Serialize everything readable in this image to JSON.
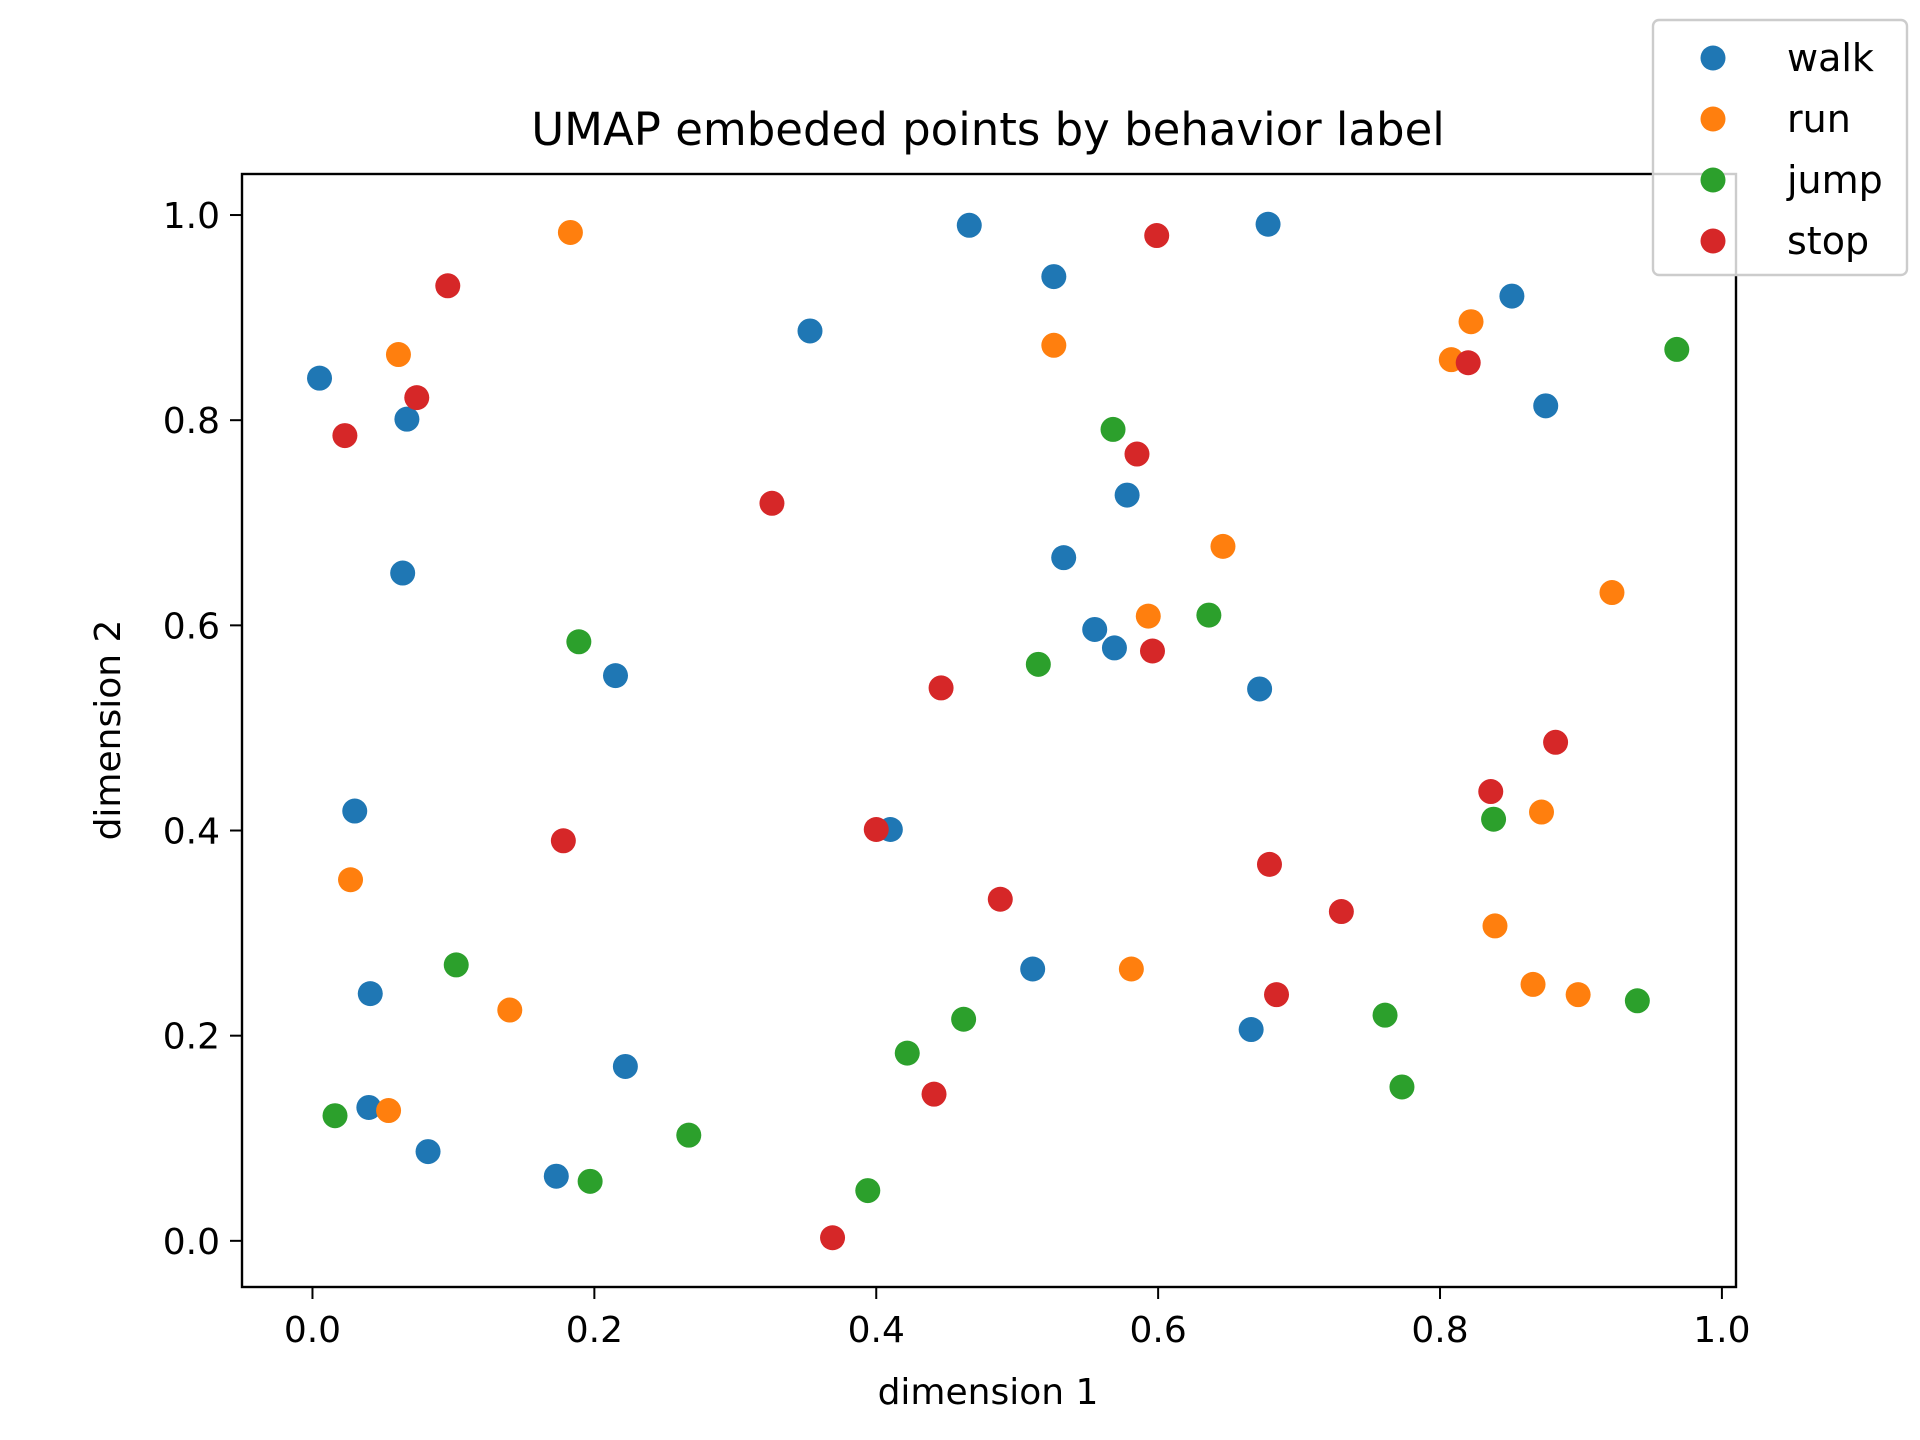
{
  "chart_data": {
    "type": "scatter",
    "title": "UMAP embeded points by behavior label",
    "xlabel": "dimension 1",
    "ylabel": "dimension 2",
    "xlim": [
      -0.05,
      1.01
    ],
    "ylim": [
      -0.045,
      1.04
    ],
    "xticks": [
      0.0,
      0.2,
      0.4,
      0.6,
      0.8,
      1.0
    ],
    "xtick_labels": [
      "0.0",
      "0.2",
      "0.4",
      "0.6",
      "0.8",
      "1.0"
    ],
    "yticks": [
      0.0,
      0.2,
      0.4,
      0.6,
      0.8,
      1.0
    ],
    "ytick_labels": [
      "0.0",
      "0.2",
      "0.4",
      "0.6",
      "0.8",
      "1.0"
    ],
    "grid": false,
    "legend": "top-right",
    "series": [
      {
        "name": "walk",
        "color": "#1f77b4",
        "points": [
          [
            0.005,
            0.841
          ],
          [
            0.067,
            0.801
          ],
          [
            0.064,
            0.651
          ],
          [
            0.03,
            0.419
          ],
          [
            0.041,
            0.241
          ],
          [
            0.04,
            0.13
          ],
          [
            0.082,
            0.087
          ],
          [
            0.173,
            0.063
          ],
          [
            0.215,
            0.551
          ],
          [
            0.222,
            0.17
          ],
          [
            0.353,
            0.887
          ],
          [
            0.41,
            0.401
          ],
          [
            0.466,
            0.99
          ],
          [
            0.511,
            0.265
          ],
          [
            0.526,
            0.94
          ],
          [
            0.533,
            0.666
          ],
          [
            0.555,
            0.596
          ],
          [
            0.569,
            0.578
          ],
          [
            0.578,
            0.727
          ],
          [
            0.666,
            0.206
          ],
          [
            0.672,
            0.538
          ],
          [
            0.678,
            0.991
          ],
          [
            0.851,
            0.921
          ],
          [
            0.875,
            0.814
          ]
        ]
      },
      {
        "name": "run",
        "color": "#ff7f0e",
        "points": [
          [
            0.027,
            0.352
          ],
          [
            0.054,
            0.127
          ],
          [
            0.061,
            0.864
          ],
          [
            0.14,
            0.225
          ],
          [
            0.183,
            0.983
          ],
          [
            0.526,
            0.873
          ],
          [
            0.581,
            0.265
          ],
          [
            0.593,
            0.609
          ],
          [
            0.646,
            0.677
          ],
          [
            0.808,
            0.859
          ],
          [
            0.822,
            0.896
          ],
          [
            0.839,
            0.307
          ],
          [
            0.866,
            0.25
          ],
          [
            0.872,
            0.418
          ],
          [
            0.898,
            0.24
          ],
          [
            0.922,
            0.632
          ]
        ]
      },
      {
        "name": "jump",
        "color": "#2ca02c",
        "points": [
          [
            0.016,
            0.122
          ],
          [
            0.102,
            0.269
          ],
          [
            0.189,
            0.584
          ],
          [
            0.197,
            0.058
          ],
          [
            0.267,
            0.103
          ],
          [
            0.394,
            0.049
          ],
          [
            0.422,
            0.183
          ],
          [
            0.462,
            0.216
          ],
          [
            0.515,
            0.562
          ],
          [
            0.568,
            0.791
          ],
          [
            0.636,
            0.61
          ],
          [
            0.761,
            0.22
          ],
          [
            0.773,
            0.15
          ],
          [
            0.838,
            0.411
          ],
          [
            0.94,
            0.234
          ],
          [
            0.968,
            0.869
          ]
        ]
      },
      {
        "name": "stop",
        "color": "#d62728",
        "points": [
          [
            0.023,
            0.785
          ],
          [
            0.074,
            0.822
          ],
          [
            0.096,
            0.931
          ],
          [
            0.178,
            0.39
          ],
          [
            0.326,
            0.719
          ],
          [
            0.369,
            0.003
          ],
          [
            0.4,
            0.401
          ],
          [
            0.441,
            0.143
          ],
          [
            0.446,
            0.539
          ],
          [
            0.488,
            0.333
          ],
          [
            0.585,
            0.767
          ],
          [
            0.596,
            0.575
          ],
          [
            0.599,
            0.98
          ],
          [
            0.679,
            0.367
          ],
          [
            0.684,
            0.24
          ],
          [
            0.73,
            0.321
          ],
          [
            0.82,
            0.856
          ],
          [
            0.836,
            0.438
          ],
          [
            0.882,
            0.486
          ]
        ]
      }
    ]
  }
}
